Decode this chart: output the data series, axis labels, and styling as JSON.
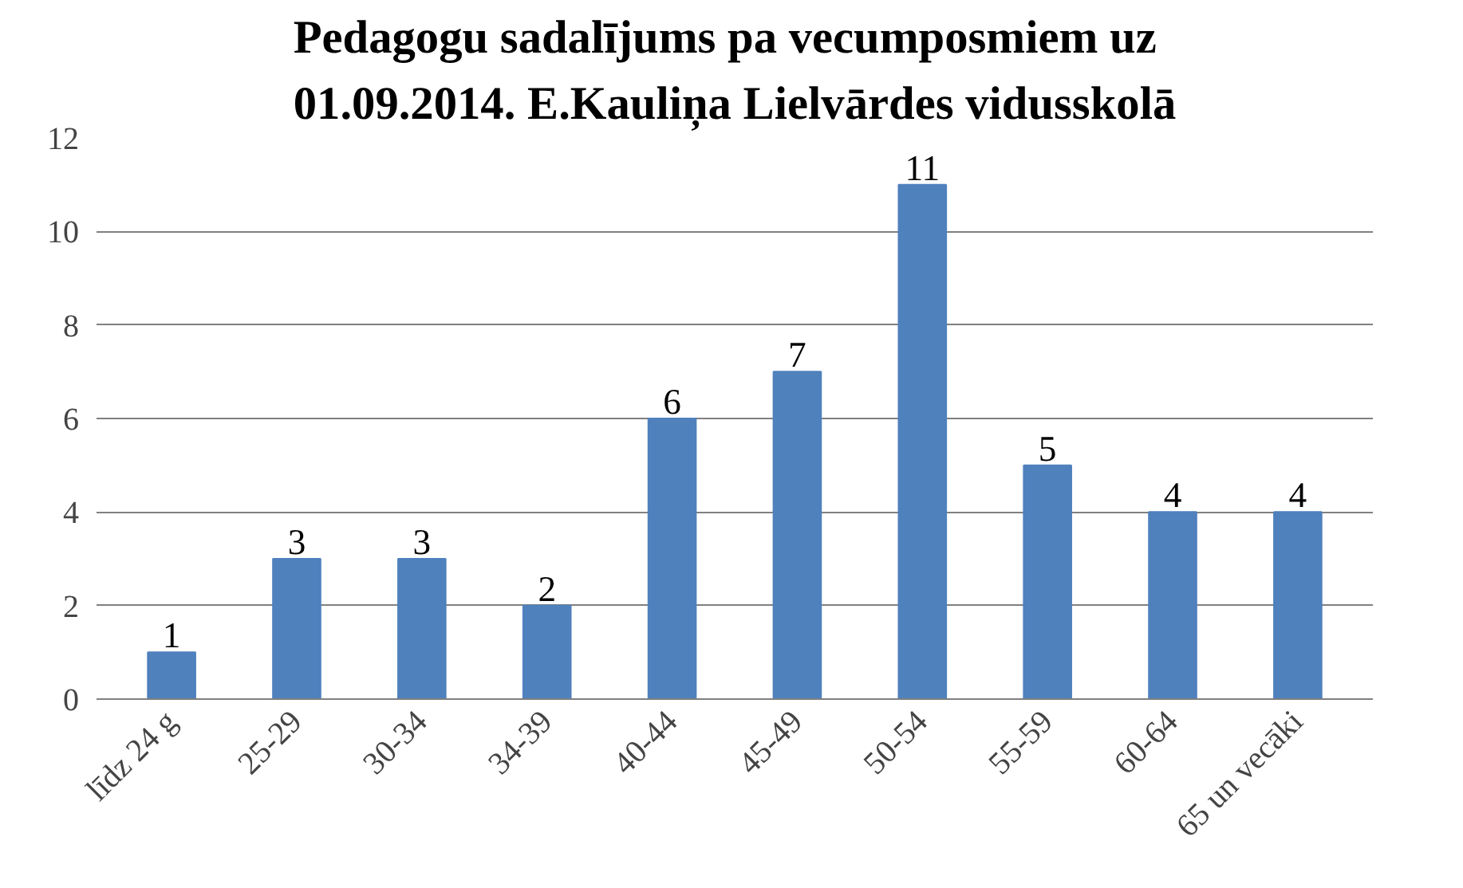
{
  "chart_data": {
    "type": "bar",
    "title": "Pedagogu sadalījums pa vecumposmiem uz\n01.09.2014. E.Kauliņa Lielvārdes vidusskolā",
    "categories": [
      "līdz 24 g",
      "25-29",
      "30-34",
      "34-39",
      "40-44",
      "45-49",
      "50-54",
      "55-59",
      "60-64",
      "65 un vecāki"
    ],
    "values": [
      1,
      3,
      3,
      2,
      6,
      7,
      11,
      5,
      4,
      4
    ],
    "color": "#4f81bd",
    "ylim": [
      0,
      12
    ],
    "yticks": [
      0,
      2,
      4,
      6,
      8,
      10,
      12
    ],
    "grid": "y",
    "data_labels": true
  }
}
